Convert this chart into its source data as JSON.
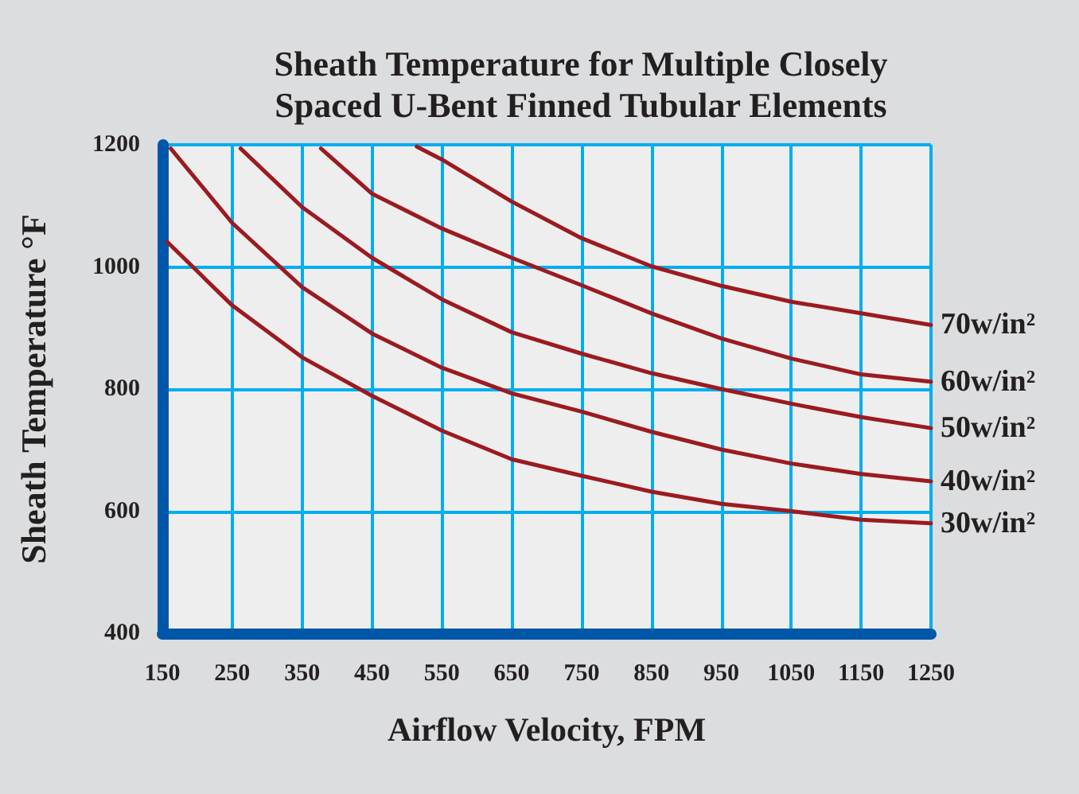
{
  "chart_data": {
    "type": "line",
    "title": "Sheath Temperature for Multiple Closely\nSpaced U-Bent Finned Tubular Elements",
    "xlabel": "Airflow Velocity, FPM",
    "ylabel": "Sheath Temperature °F",
    "xlim": [
      150,
      1250
    ],
    "xticks": [
      150,
      250,
      350,
      450,
      550,
      650,
      750,
      850,
      950,
      1050,
      1150,
      1250
    ],
    "ylim": [
      400,
      1200
    ],
    "yticks": [
      400,
      600,
      800,
      1000,
      1200
    ],
    "grid": true,
    "marker": "none",
    "line_style": "solid",
    "legend": false,
    "series": [
      {
        "name": "70w/in²",
        "color": "#9b1b20",
        "x": [
          514,
          550,
          650,
          750,
          850,
          950,
          1050,
          1150,
          1250
        ],
        "values": [
          1197,
          1176,
          1107,
          1047,
          1001,
          969,
          943,
          924,
          905
        ]
      },
      {
        "name": "60w/in²",
        "color": "#9b1b20",
        "x": [
          377,
          450,
          550,
          650,
          750,
          850,
          950,
          1050,
          1150,
          1250
        ],
        "values": [
          1194,
          1120,
          1063,
          1015,
          970,
          924,
          883,
          850,
          824,
          812
        ]
      },
      {
        "name": "50w/in²",
        "color": "#9b1b20",
        "x": [
          262,
          350,
          450,
          550,
          650,
          750,
          850,
          950,
          1050,
          1150,
          1250
        ],
        "values": [
          1194,
          1098,
          1015,
          947,
          893,
          858,
          826,
          800,
          776,
          754,
          736
        ]
      },
      {
        "name": "40w/in²",
        "color": "#9b1b20",
        "x": [
          162,
          250,
          350,
          450,
          550,
          650,
          750,
          850,
          950,
          1050,
          1150,
          1250
        ],
        "values": [
          1194,
          1072,
          967,
          891,
          835,
          793,
          763,
          730,
          701,
          678,
          661,
          649
        ]
      },
      {
        "name": "30w/in²",
        "color": "#9b1b20",
        "x": [
          157,
          250,
          350,
          450,
          550,
          650,
          750,
          850,
          950,
          1050,
          1150,
          1250
        ],
        "values": [
          1041,
          937,
          852,
          789,
          732,
          685,
          658,
          632,
          612,
          600,
          586,
          580
        ]
      }
    ]
  }
}
